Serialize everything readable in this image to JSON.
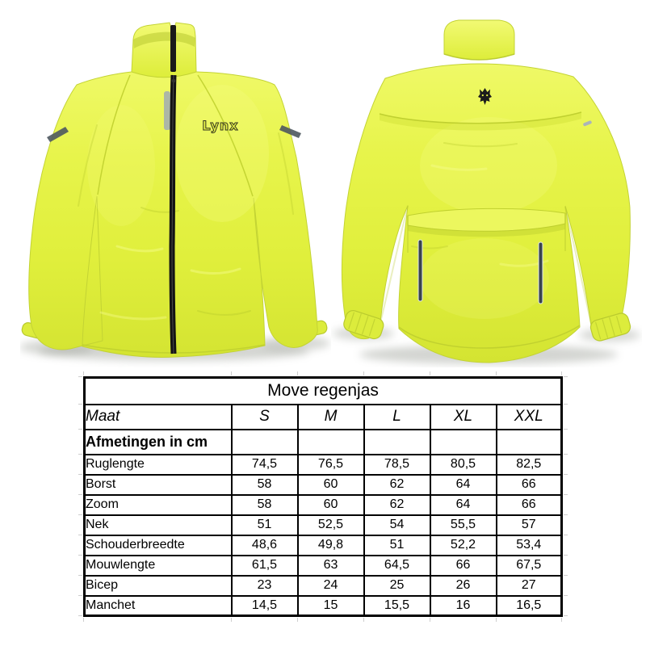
{
  "product": {
    "brand_text": "Lynx"
  },
  "colors": {
    "jacket_yellow": "#e6f347",
    "jacket_highlight": "#f1fa78",
    "jacket_shadow": "#cddd31",
    "seam": "#b9ca2e",
    "zipper_black": "#141414",
    "reflective_front_gray": "#4e585f",
    "reflective_back_dark": "#39434d",
    "table_border": "#000000",
    "background": "#ffffff"
  },
  "size_table": {
    "title": "Move regenjas",
    "columns": [
      "Maat",
      "S",
      "M",
      "L",
      "XL",
      "XXL"
    ],
    "section_label": "Afmetingen in cm",
    "rows": [
      {
        "label": "Ruglengte",
        "values": [
          "74,5",
          "76,5",
          "78,5",
          "80,5",
          "82,5"
        ]
      },
      {
        "label": "Borst",
        "values": [
          "58",
          "60",
          "62",
          "64",
          "66"
        ]
      },
      {
        "label": "Zoom",
        "values": [
          "58",
          "60",
          "62",
          "64",
          "66"
        ]
      },
      {
        "label": "Nek",
        "values": [
          "51",
          "52,5",
          "54",
          "55,5",
          "57"
        ]
      },
      {
        "label": "Schouderbreedte",
        "values": [
          "48,6",
          "49,8",
          "51",
          "52,2",
          "53,4"
        ]
      },
      {
        "label": "Mouwlengte",
        "values": [
          "61,5",
          "63",
          "64,5",
          "66",
          "67,5"
        ]
      },
      {
        "label": "Bicep",
        "values": [
          "23",
          "24",
          "25",
          "26",
          "27"
        ]
      },
      {
        "label": "Manchet",
        "values": [
          "14,5",
          "15",
          "15,5",
          "16",
          "16,5"
        ]
      }
    ]
  },
  "chart_data": {
    "type": "table",
    "title": "Move regenjas",
    "columns": [
      "Maat",
      "S",
      "M",
      "L",
      "XL",
      "XXL"
    ],
    "unit_note": "Afmetingen in cm",
    "rows": [
      [
        "Ruglengte",
        "74,5",
        "76,5",
        "78,5",
        "80,5",
        "82,5"
      ],
      [
        "Borst",
        "58",
        "60",
        "62",
        "64",
        "66"
      ],
      [
        "Zoom",
        "58",
        "60",
        "62",
        "64",
        "66"
      ],
      [
        "Nek",
        "51",
        "52,5",
        "54",
        "55,5",
        "57"
      ],
      [
        "Schouderbreedte",
        "48,6",
        "49,8",
        "51",
        "52,2",
        "53,4"
      ],
      [
        "Mouwlengte",
        "61,5",
        "63",
        "64,5",
        "66",
        "67,5"
      ],
      [
        "Bicep",
        "23",
        "24",
        "25",
        "26",
        "27"
      ],
      [
        "Manchet",
        "14,5",
        "15",
        "15,5",
        "16",
        "16,5"
      ]
    ]
  }
}
